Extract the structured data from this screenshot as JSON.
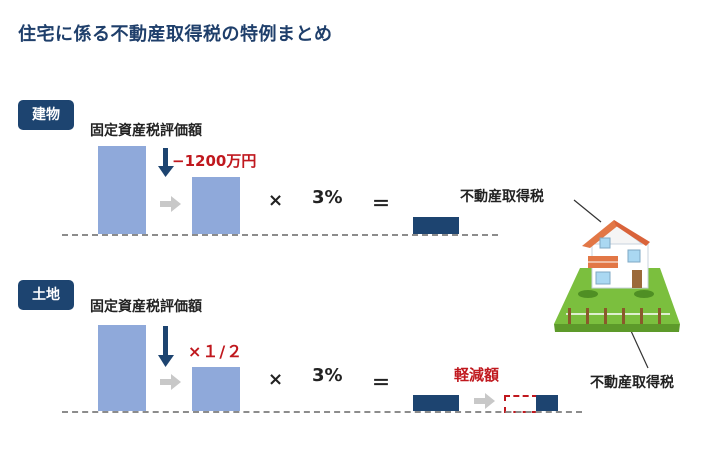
{
  "title": "住宅に係る不動産取得税の特例まとめ",
  "building": {
    "badge": "建物",
    "base_label": "固定資産税評価額",
    "deduction": "−1200万円",
    "multiply": "×",
    "rate": "3%",
    "equals": "＝"
  },
  "land": {
    "badge": "土地",
    "base_label": "固定資産税評価額",
    "factor": "×１/２",
    "multiply": "×",
    "rate": "3%",
    "equals": "＝",
    "reduction_label": "軽減額"
  },
  "house_labels": {
    "building_tax": "不動産取得税",
    "land_tax": "不動産取得税"
  },
  "colors": {
    "navy": "#1d4470",
    "bar_blue": "#8fa9da",
    "accent_red": "#c0181e",
    "grey_arrow": "#c8c8c8"
  }
}
